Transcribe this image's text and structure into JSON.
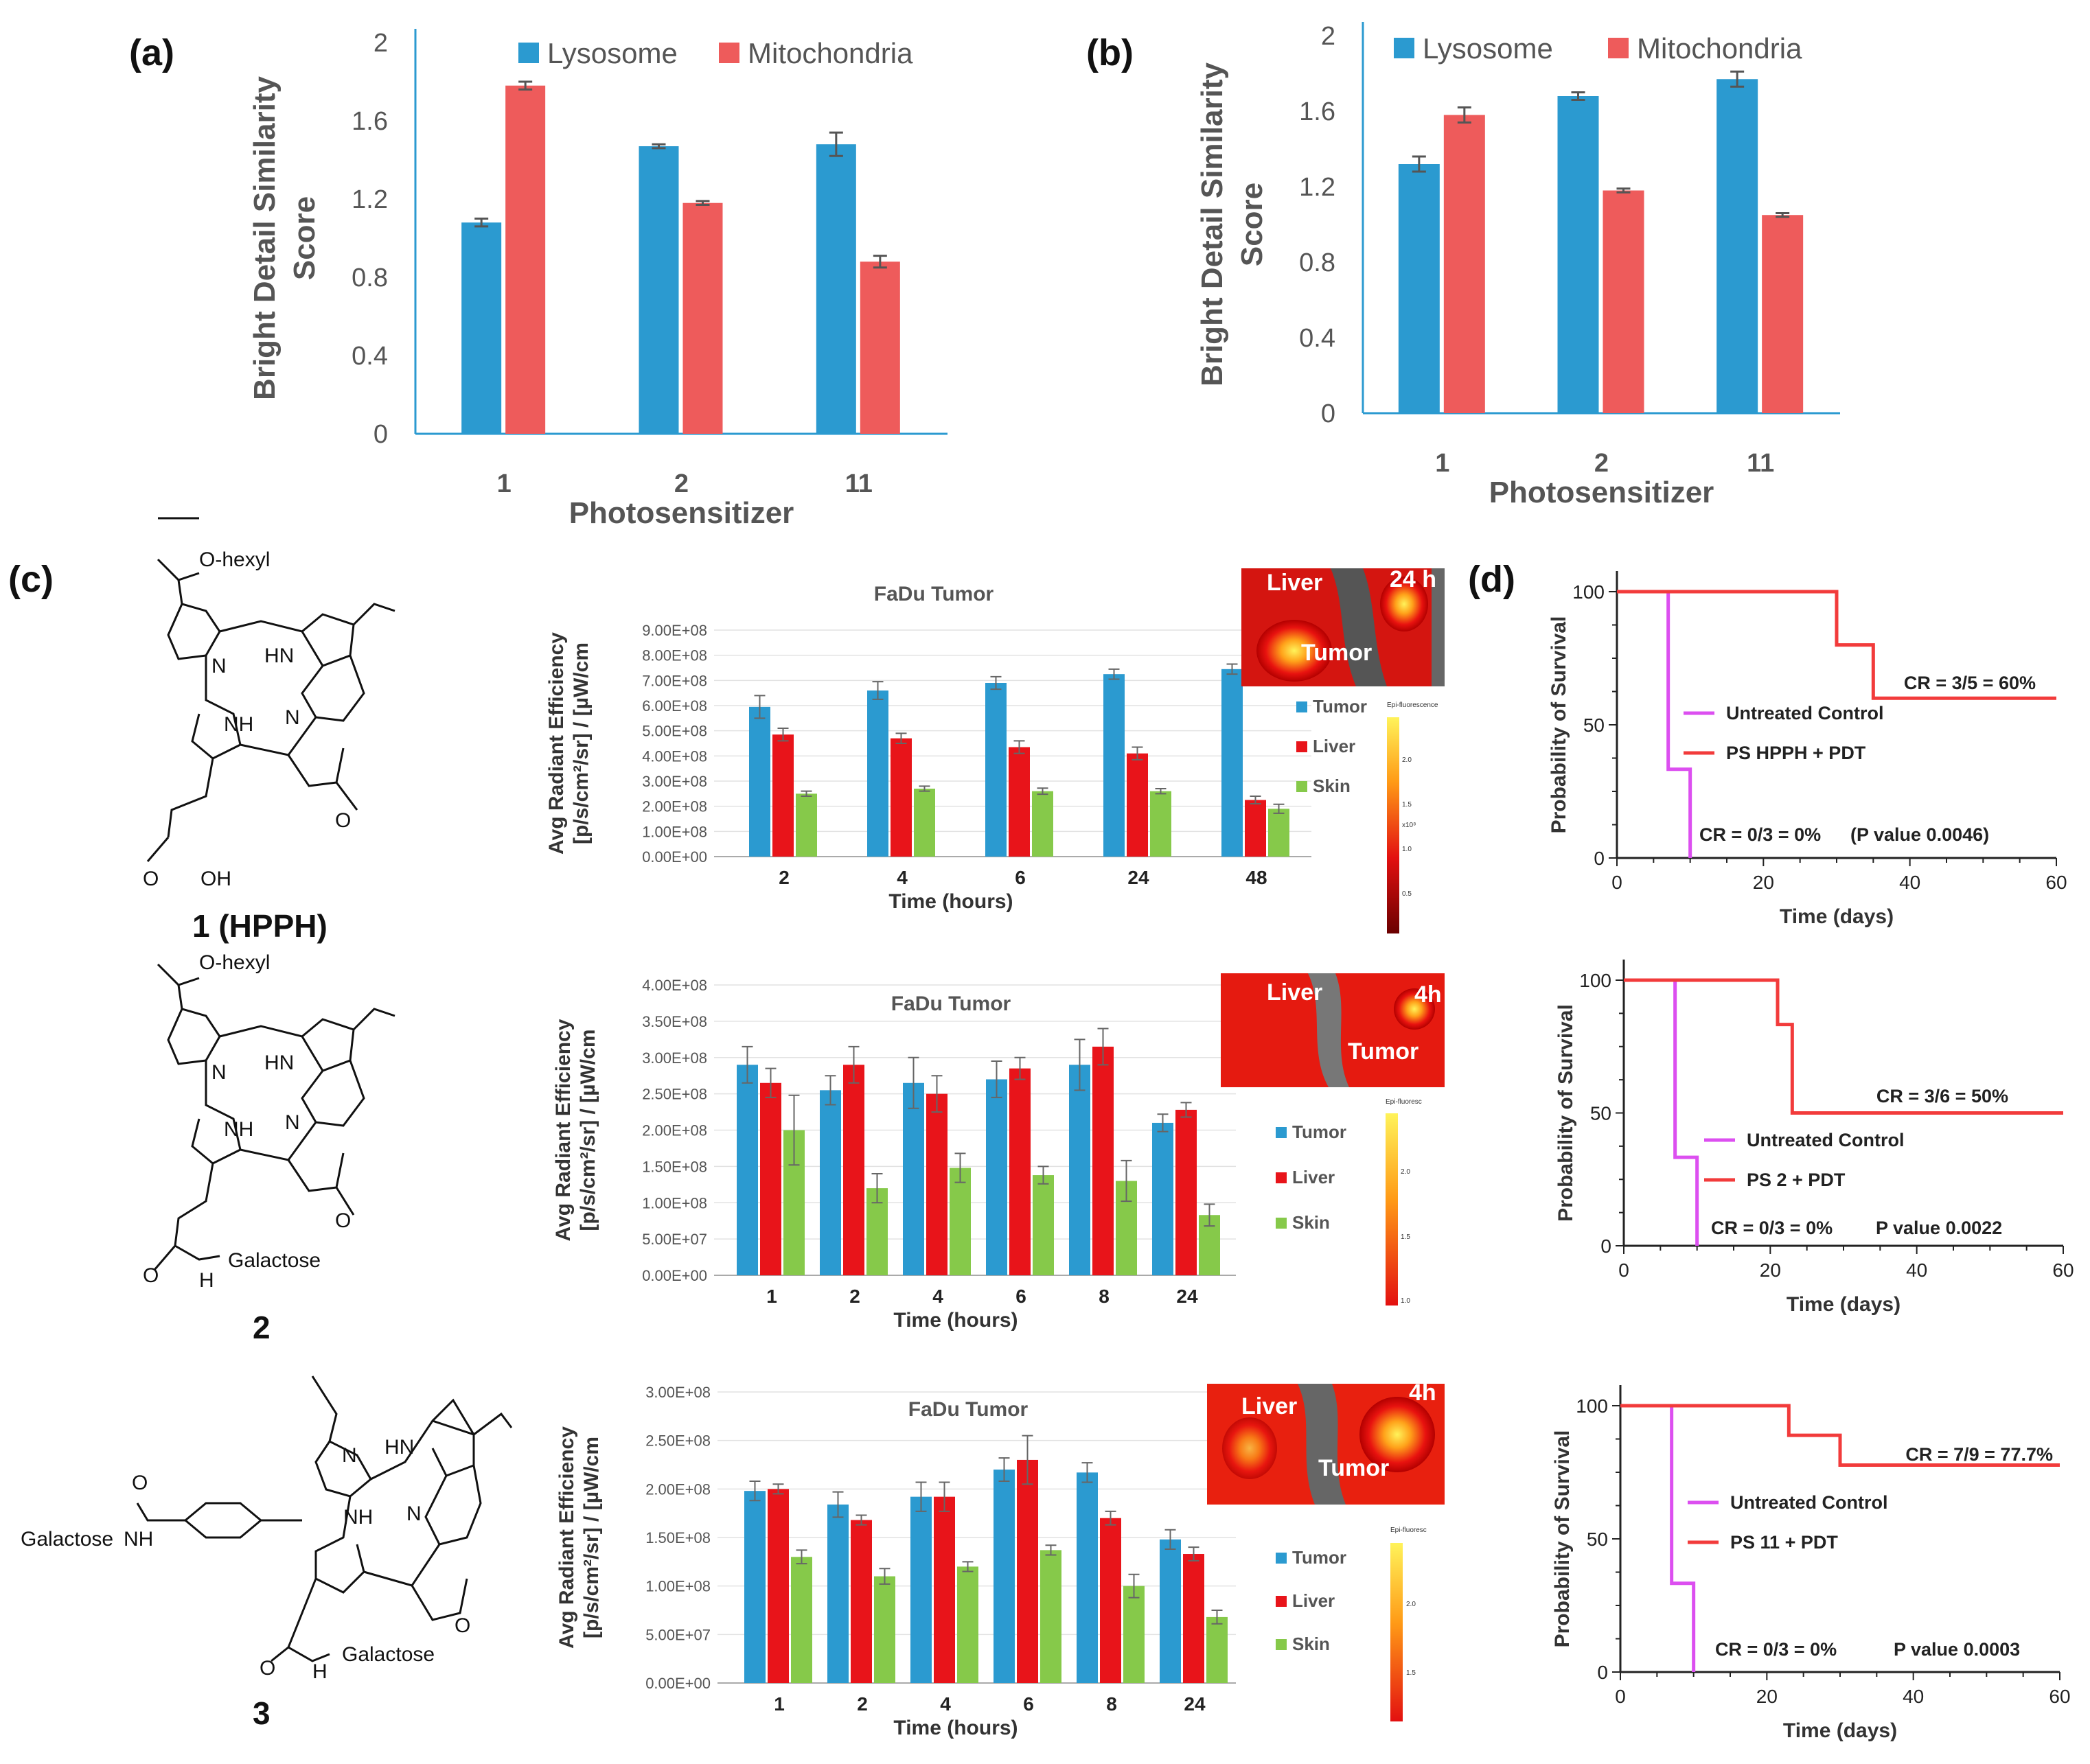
{
  "figure": {
    "panel_labels": [
      "(a)",
      "(b)",
      "(c)",
      "(d)"
    ]
  },
  "colors": {
    "lysosome": "#2b9ad0",
    "mitochondria": "#ee5b5b",
    "tumor": "#2b9ad0",
    "liver": "#e8141a",
    "skin": "#86c94a",
    "km_control": "#dc4ff0",
    "km_treated": "#f23b3b",
    "axis_blue": "#2b9ad0"
  },
  "chemistry": {
    "compound1_substituent": "O-hexyl",
    "compound1_label": "1 (HPPH)",
    "compound2_substituent": "O-hexyl",
    "compound2_amide": "Galactose",
    "compound2_label": "2",
    "compound3_amide_left": "Galactose",
    "compound3_amide_bottom": "Galactose",
    "compound3_label": "3",
    "atoms": {
      "N": "N",
      "HN": "HN",
      "NH": "NH",
      "O": "O",
      "OH": "OH",
      "H": "H"
    }
  },
  "insets": [
    {
      "liver": "Liver",
      "tumor": "Tumor",
      "time": "24 h",
      "scale_title": "Epi-fluorescence",
      "scale_ticks": [
        "2.0",
        "1.5",
        "1.0",
        "0.5",
        "x10⁸"
      ]
    },
    {
      "liver": "Liver",
      "tumor": "Tumor",
      "time": "4h",
      "scale_title": "Epi-fluoresc",
      "scale_ticks": [
        "2.0",
        "1.5",
        "1.0"
      ]
    },
    {
      "liver": "Liver",
      "tumor": "Tumor",
      "time": "4h",
      "scale_title": "Epi-fluoresc",
      "scale_ticks": [
        "2.0",
        "1.5"
      ]
    }
  ],
  "chart_data": [
    {
      "id": "a",
      "type": "bar",
      "ylabel_lines": [
        "Bright Detail Similarity",
        "Score"
      ],
      "xlabel": "Photosensitizer",
      "categories": [
        "1",
        "2",
        "11"
      ],
      "ylim": [
        0,
        2
      ],
      "yticks": [
        "0",
        "0.4",
        "0.8",
        "1.2",
        "1.6",
        "2"
      ],
      "series": [
        {
          "name": "Lysosome",
          "values": [
            1.08,
            1.47,
            1.48
          ],
          "errors": [
            0.02,
            0.01,
            0.06
          ]
        },
        {
          "name": "Mitochondria",
          "values": [
            1.78,
            1.18,
            0.88
          ],
          "errors": [
            0.02,
            0.01,
            0.03
          ]
        }
      ]
    },
    {
      "id": "b",
      "type": "bar",
      "ylabel_lines": [
        "Bright Detail Similarity",
        "Score"
      ],
      "xlabel": "Photosensitizer",
      "categories": [
        "1",
        "2",
        "11"
      ],
      "ylim": [
        0,
        2
      ],
      "yticks": [
        "0",
        "0.4",
        "0.8",
        "1.2",
        "1.6",
        "2"
      ],
      "series": [
        {
          "name": "Lysosome",
          "values": [
            1.32,
            1.68,
            1.77
          ],
          "errors": [
            0.04,
            0.02,
            0.04
          ]
        },
        {
          "name": "Mitochondria",
          "values": [
            1.58,
            1.18,
            1.05
          ],
          "errors": [
            0.04,
            0.01,
            0.01
          ]
        }
      ]
    },
    {
      "id": "c1",
      "type": "bar",
      "title": "FaDu Tumor",
      "ylabel_lines": [
        "Avg Radiant Efficiency",
        "[p/s/cm²/sr] / [µW/cm"
      ],
      "xlabel": "Time (hours)",
      "categories": [
        "2",
        "4",
        "6",
        "24",
        "48"
      ],
      "ylim": [
        0,
        900000000
      ],
      "yticks": [
        "0.00E+00",
        "1.00E+08",
        "2.00E+08",
        "3.00E+08",
        "4.00E+08",
        "5.00E+08",
        "6.00E+08",
        "7.00E+08",
        "8.00E+08",
        "9.00E+08"
      ],
      "series": [
        {
          "name": "Tumor",
          "values": [
            595000000,
            660000000,
            690000000,
            725000000,
            745000000
          ],
          "errors": [
            45000000,
            35000000,
            25000000,
            20000000,
            20000000
          ]
        },
        {
          "name": "Liver",
          "values": [
            485000000,
            470000000,
            435000000,
            410000000,
            225000000
          ],
          "errors": [
            25000000,
            20000000,
            25000000,
            25000000,
            15000000
          ]
        },
        {
          "name": "Skin",
          "values": [
            250000000,
            270000000,
            260000000,
            260000000,
            190000000
          ],
          "errors": [
            10000000,
            10000000,
            12000000,
            10000000,
            18000000
          ]
        }
      ]
    },
    {
      "id": "c2",
      "type": "bar",
      "title": "FaDu Tumor",
      "ylabel_lines": [
        "Avg Radiant Efficiency",
        "[p/s/cm²/sr] / [µW/cm"
      ],
      "xlabel": "Time (hours)",
      "categories": [
        "1",
        "2",
        "4",
        "6",
        "8",
        "24"
      ],
      "ylim": [
        0,
        400000000
      ],
      "yticks": [
        "0.00E+00",
        "5.00E+07",
        "1.00E+08",
        "1.50E+08",
        "2.00E+08",
        "2.50E+08",
        "3.00E+08",
        "3.50E+08",
        "4.00E+08"
      ],
      "series": [
        {
          "name": "Tumor",
          "values": [
            290000000,
            255000000,
            265000000,
            270000000,
            290000000,
            210000000
          ],
          "errors": [
            25000000,
            20000000,
            35000000,
            25000000,
            35000000,
            12000000
          ]
        },
        {
          "name": "Liver",
          "values": [
            265000000,
            290000000,
            250000000,
            285000000,
            315000000,
            228000000
          ],
          "errors": [
            20000000,
            25000000,
            25000000,
            15000000,
            25000000,
            10000000
          ]
        },
        {
          "name": "Skin",
          "values": [
            200000000,
            120000000,
            148000000,
            138000000,
            130000000,
            83000000
          ],
          "errors": [
            48000000,
            20000000,
            20000000,
            12000000,
            28000000,
            15000000
          ]
        }
      ]
    },
    {
      "id": "c3",
      "type": "bar",
      "title": "FaDu Tumor",
      "ylabel_lines": [
        "Avg Radiant Efficiency",
        "[p/s/cm²/sr] / [µW/cm"
      ],
      "xlabel": "Time (hours)",
      "categories": [
        "1",
        "2",
        "4",
        "6",
        "8",
        "24"
      ],
      "ylim": [
        0,
        300000000
      ],
      "yticks": [
        "0.00E+00",
        "5.00E+07",
        "1.00E+08",
        "1.50E+08",
        "2.00E+08",
        "2.50E+08",
        "3.00E+08"
      ],
      "series": [
        {
          "name": "Tumor",
          "values": [
            198000000,
            184000000,
            192000000,
            220000000,
            217000000,
            148000000
          ],
          "errors": [
            10000000,
            13000000,
            15000000,
            12000000,
            10000000,
            10000000
          ]
        },
        {
          "name": "Liver",
          "values": [
            200000000,
            168000000,
            192000000,
            230000000,
            170000000,
            133000000
          ],
          "errors": [
            5000000,
            5000000,
            15000000,
            25000000,
            7000000,
            7000000
          ]
        },
        {
          "name": "Skin",
          "values": [
            130000000,
            110000000,
            120000000,
            137000000,
            100000000,
            68000000
          ],
          "errors": [
            7000000,
            8000000,
            5000000,
            5000000,
            12000000,
            7000000
          ]
        }
      ]
    },
    {
      "id": "d1",
      "type": "line",
      "ylabel": "Probability of Survival",
      "xlabel": "Time (days)",
      "xlim": [
        0,
        60
      ],
      "ylim": [
        0,
        100
      ],
      "xticks": [
        "0",
        "20",
        "40",
        "60"
      ],
      "yticks": [
        "0",
        "50",
        "100"
      ],
      "series": [
        {
          "name": "Untreated Control",
          "x": [
            0,
            7,
            7,
            10,
            10
          ],
          "y": [
            100,
            100,
            33.3,
            33.3,
            0
          ]
        },
        {
          "name": "PS HPPH + PDT",
          "x": [
            0,
            30,
            30,
            35,
            35,
            60
          ],
          "y": [
            100,
            100,
            80,
            80,
            60,
            60
          ]
        }
      ],
      "annotations": [
        "CR = 3/5 = 60%",
        "CR = 0/3 = 0%",
        "(P value 0.0046)"
      ]
    },
    {
      "id": "d2",
      "type": "line",
      "ylabel": "Probability of Survival",
      "xlabel": "Time (days)",
      "xlim": [
        0,
        60
      ],
      "ylim": [
        0,
        100
      ],
      "xticks": [
        "0",
        "20",
        "40",
        "60"
      ],
      "yticks": [
        "0",
        "50",
        "100"
      ],
      "series": [
        {
          "name": "Untreated Control",
          "x": [
            0,
            7,
            7,
            10,
            10
          ],
          "y": [
            100,
            100,
            33.3,
            33.3,
            0
          ]
        },
        {
          "name": "PS 2 + PDT",
          "x": [
            0,
            21,
            21,
            23,
            23,
            60
          ],
          "y": [
            100,
            100,
            83.3,
            83.3,
            50,
            50
          ]
        }
      ],
      "annotations": [
        "CR = 3/6 = 50%",
        "CR = 0/3 = 0%",
        "P value 0.0022"
      ]
    },
    {
      "id": "d3",
      "type": "line",
      "ylabel": "Probability of Survival",
      "xlabel": "Time (days)",
      "xlim": [
        0,
        60
      ],
      "ylim": [
        0,
        100
      ],
      "xticks": [
        "0",
        "20",
        "40",
        "60"
      ],
      "yticks": [
        "0",
        "50",
        "100"
      ],
      "series": [
        {
          "name": "Untreated Control",
          "x": [
            0,
            7,
            7,
            10,
            10
          ],
          "y": [
            100,
            100,
            33.3,
            33.3,
            0
          ]
        },
        {
          "name": "PS 11 + PDT",
          "x": [
            0,
            23,
            23,
            30,
            30,
            60
          ],
          "y": [
            100,
            100,
            88.9,
            88.9,
            77.7,
            77.7
          ]
        }
      ],
      "annotations": [
        "CR = 7/9 = 77.7%",
        "CR = 0/3 = 0%",
        "P value 0.0003"
      ]
    }
  ]
}
